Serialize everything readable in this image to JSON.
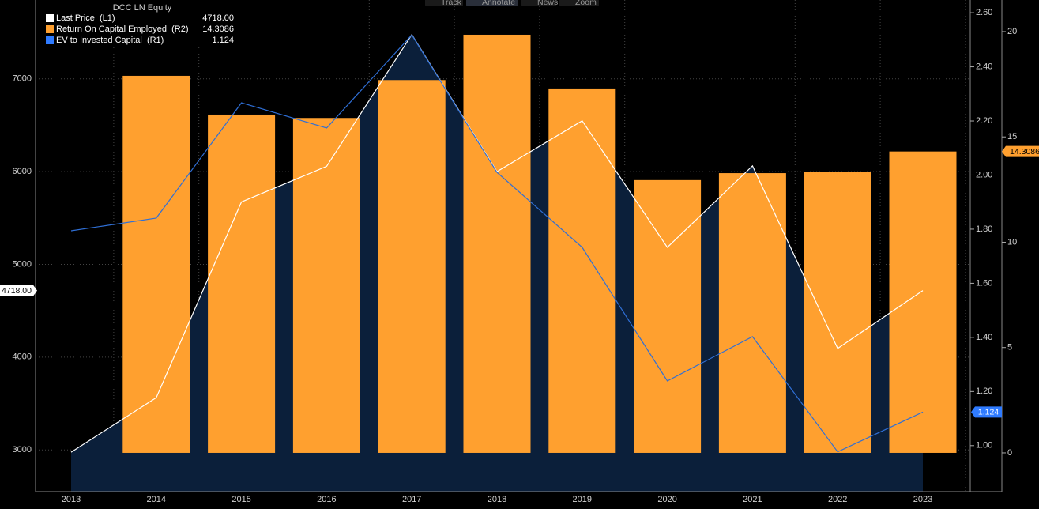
{
  "toolbar": [
    "Track",
    "Annotate",
    "News",
    "Zoom"
  ],
  "chart_data": {
    "type": "combo",
    "title": "DCC LN Equity",
    "categories": [
      "2013",
      "2014",
      "2015",
      "2016",
      "2017",
      "2018",
      "2019",
      "2020",
      "2021",
      "2022",
      "2023"
    ],
    "series": [
      {
        "name": "Last Price  (L1)",
        "type": "line",
        "axis": "y",
        "color": "#ffffff",
        "area_color": "#0b1f3a",
        "values": [
          2975,
          3563,
          5673,
          6057,
          7477,
          6000,
          6548,
          5183,
          6062,
          4093,
          4718
        ],
        "value_labels": [
          null,
          null,
          null,
          null,
          null,
          null,
          null,
          null,
          null,
          null,
          "4718.00"
        ]
      },
      {
        "name": "Return On Capital Employed  (R2)",
        "type": "bar",
        "axis": "y3",
        "color": "#ffa02f",
        "values": [
          null,
          17.9,
          16.06,
          15.9,
          17.7,
          19.85,
          17.3,
          12.95,
          13.28,
          13.32,
          14.3086
        ]
      },
      {
        "name": "EV to Invested Capital  (R1)",
        "type": "line",
        "axis": "y2",
        "color": "#2f6fd6",
        "values": [
          1.794,
          1.841,
          2.267,
          2.174,
          2.518,
          2.01,
          1.733,
          1.239,
          1.403,
          0.977,
          1.124
        ]
      }
    ],
    "ylim": [
      2550,
      7850
    ],
    "yticks": [
      3000,
      4000,
      5000,
      6000,
      7000
    ],
    "y2lim": [
      0.83,
      2.647
    ],
    "y2ticks": [
      {
        "value": 1,
        "label": "1.00"
      },
      {
        "value": 1.2,
        "label": "1.20"
      },
      {
        "value": 1.4,
        "label": "1.40"
      },
      {
        "value": 1.6,
        "label": "1.60"
      },
      {
        "value": 1.8,
        "label": "1.80"
      },
      {
        "value": 2,
        "label": "2.00"
      },
      {
        "value": 2.2,
        "label": "2.20"
      },
      {
        "value": 2.4,
        "label": "2.40"
      },
      {
        "value": 2.6,
        "label": "2.60"
      }
    ],
    "y3lim": [
      -1.84,
      21.5
    ],
    "y3ticks": [
      0,
      5,
      10,
      15,
      20
    ],
    "grid": true
  }
}
